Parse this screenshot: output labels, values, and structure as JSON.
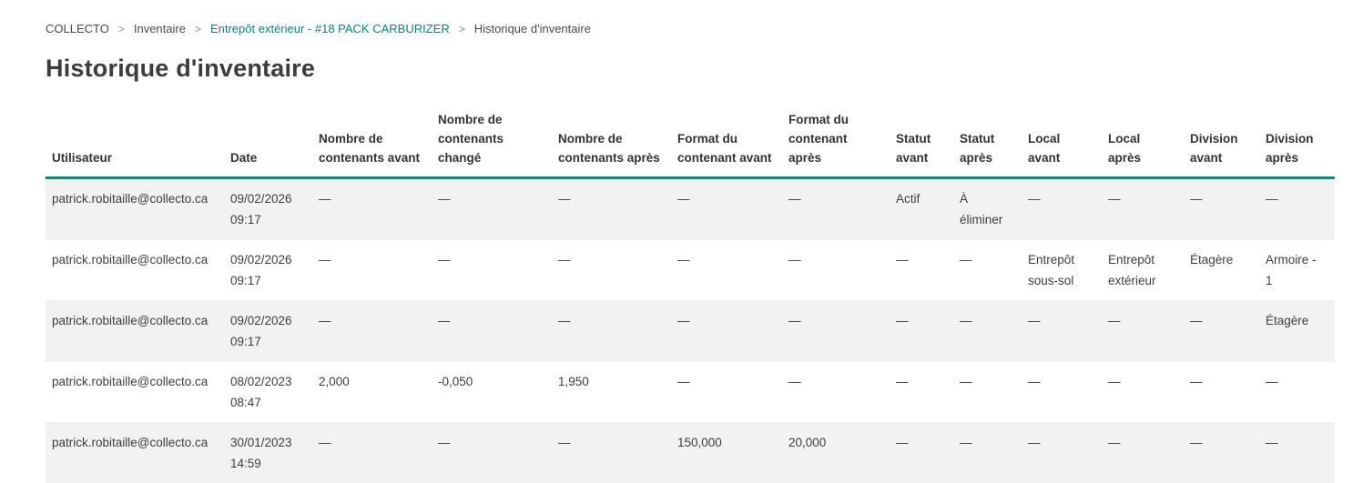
{
  "breadcrumb": {
    "separator": ">",
    "items": [
      {
        "label": "COLLECTO",
        "style": "text",
        "clickable": false
      },
      {
        "label": "Inventaire",
        "style": "text",
        "clickable": true
      },
      {
        "label": "Entrepôt extérieur - #18 PACK CARBURIZER",
        "style": "link",
        "clickable": true
      },
      {
        "label": "Historique d'inventaire",
        "style": "text",
        "clickable": false
      }
    ]
  },
  "page": {
    "title": "Historique d'inventaire"
  },
  "table": {
    "columns": [
      "Utilisateur",
      "Date",
      "Nombre de contenants avant",
      "Nombre de contenants changé",
      "Nombre de contenants après",
      "Format du contenant avant",
      "Format du contenant après",
      "Statut avant",
      "Statut après",
      "Local avant",
      "Local après",
      "Division avant",
      "Division après"
    ],
    "rows": [
      [
        "patrick.robitaille@collecto.ca",
        "09/02/2026 09:17",
        "—",
        "—",
        "—",
        "—",
        "—",
        "Actif",
        "À éliminer",
        "—",
        "—",
        "—",
        "—"
      ],
      [
        "patrick.robitaille@collecto.ca",
        "09/02/2026 09:17",
        "—",
        "—",
        "—",
        "—",
        "—",
        "—",
        "—",
        "Entrepôt sous-sol",
        "Entrepôt extérieur",
        "Étagère",
        "Armoire - 1"
      ],
      [
        "patrick.robitaille@collecto.ca",
        "09/02/2026 09:17",
        "—",
        "—",
        "—",
        "—",
        "—",
        "—",
        "—",
        "—",
        "—",
        "—",
        "Étagère"
      ],
      [
        "patrick.robitaille@collecto.ca",
        "08/02/2023 08:47",
        "2,000",
        "-0,050",
        "1,950",
        "—",
        "—",
        "—",
        "—",
        "—",
        "—",
        "—",
        "—"
      ],
      [
        "patrick.robitaille@collecto.ca",
        "30/01/2023 14:59",
        "—",
        "—",
        "—",
        "150,000",
        "20,000",
        "—",
        "—",
        "—",
        "—",
        "—",
        "—"
      ]
    ]
  },
  "colors": {
    "link": "#00897b",
    "header_border": "#128a72",
    "row_alt_bg": "#f2f2f2"
  }
}
